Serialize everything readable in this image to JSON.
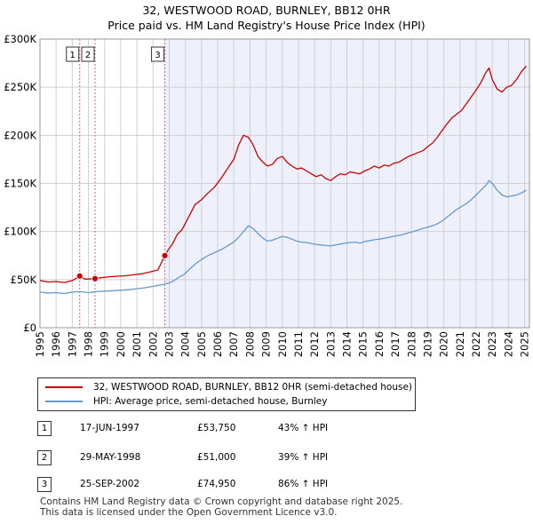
{
  "title": "32, WESTWOOD ROAD, BURNLEY, BB12 0HR",
  "subtitle": "Price paid vs. HM Land Registry's House Price Index (HPI)",
  "colors": {
    "property": "#cc0000",
    "hpi": "#6699cc",
    "shade": "#eef1fb",
    "marker_line": "#cc6688"
  },
  "chart_data": {
    "type": "line",
    "title": "32, WESTWOOD ROAD, BURNLEY, BB12 0HR",
    "subtitle": "Price paid vs. HM Land Registry's House Price Index (HPI)",
    "xlim": [
      1995,
      2025.3
    ],
    "ylim": [
      0,
      300000
    ],
    "y_ticks": [
      0,
      50000,
      100000,
      150000,
      200000,
      250000,
      300000
    ],
    "y_tick_labels": [
      "£0",
      "£50K",
      "£100K",
      "£150K",
      "£200K",
      "£250K",
      "£300K"
    ],
    "x_ticks": [
      1995,
      1996,
      1997,
      1998,
      1999,
      2000,
      2001,
      2002,
      2003,
      2004,
      2005,
      2006,
      2007,
      2008,
      2009,
      2010,
      2011,
      2012,
      2013,
      2014,
      2015,
      2016,
      2017,
      2018,
      2019,
      2020,
      2021,
      2022,
      2023,
      2024,
      2025
    ],
    "x_tick_labels": [
      "1995",
      "1996",
      "1997",
      "1998",
      "1999",
      "2000",
      "2001",
      "2002",
      "2003",
      "2004",
      "2005",
      "2006",
      "2007",
      "2008",
      "2009",
      "2010",
      "2011",
      "2012",
      "2013",
      "2014",
      "2015",
      "2016",
      "2017",
      "2018",
      "2019",
      "2020",
      "2021",
      "2022",
      "2023",
      "2024",
      "2025"
    ],
    "grid": true,
    "series": [
      {
        "name": "32, WESTWOOD ROAD, BURNLEY, BB12 0HR (semi-detached house)",
        "x": [
          1995,
          1995.5,
          1996,
          1996.5,
          1997.0,
          1997.46,
          1997.8,
          1998.41,
          1998.8,
          1999.3,
          1999.8,
          2000.3,
          2000.8,
          2001.3,
          2001.8,
          2002.3,
          2002.73,
          2002.9,
          2003.2,
          2003.5,
          2003.8,
          2004.2,
          2004.6,
          2005.0,
          2005.4,
          2005.8,
          2006.2,
          2006.6,
          2007.0,
          2007.3,
          2007.6,
          2007.9,
          2008.2,
          2008.5,
          2008.8,
          2009.1,
          2009.4,
          2009.7,
          2010.0,
          2010.3,
          2010.6,
          2010.9,
          2011.2,
          2011.5,
          2011.8,
          2012.1,
          2012.4,
          2012.7,
          2013.0,
          2013.3,
          2013.6,
          2013.9,
          2014.2,
          2014.5,
          2014.8,
          2015.1,
          2015.4,
          2015.7,
          2016.0,
          2016.3,
          2016.6,
          2016.9,
          2017.2,
          2017.5,
          2017.8,
          2018.1,
          2018.4,
          2018.7,
          2019.0,
          2019.3,
          2019.6,
          2019.9,
          2020.2,
          2020.5,
          2020.8,
          2021.1,
          2021.4,
          2021.7,
          2022.0,
          2022.3,
          2022.6,
          2022.8,
          2023.0,
          2023.3,
          2023.6,
          2023.9,
          2024.2,
          2024.5,
          2024.8,
          2025.1
        ],
        "values": [
          49000,
          47500,
          48000,
          47000,
          49000,
          53750,
          50500,
          51000,
          52000,
          53000,
          53500,
          54000,
          55000,
          56000,
          58000,
          60000,
          74950,
          80000,
          87000,
          97000,
          102000,
          115000,
          128000,
          133000,
          140000,
          146000,
          155000,
          165000,
          175000,
          190000,
          200000,
          198000,
          190000,
          178000,
          172000,
          168000,
          170000,
          176000,
          178000,
          172000,
          168000,
          165000,
          166000,
          163000,
          160000,
          157000,
          159000,
          155000,
          153000,
          157000,
          160000,
          159000,
          162000,
          161000,
          160000,
          163000,
          165000,
          168000,
          166000,
          169000,
          168000,
          171000,
          172000,
          175000,
          178000,
          180000,
          182000,
          184000,
          188000,
          192000,
          198000,
          205000,
          212000,
          218000,
          222000,
          226000,
          233000,
          240000,
          247000,
          255000,
          265000,
          270000,
          258000,
          248000,
          245000,
          250000,
          252000,
          258000,
          266000,
          272000
        ]
      },
      {
        "name": "HPI: Average price, semi-detached house, Burnley",
        "x": [
          1995,
          1995.5,
          1996,
          1996.5,
          1997.0,
          1997.5,
          1998.0,
          1998.5,
          1999.0,
          1999.5,
          2000.0,
          2000.5,
          2001.0,
          2001.5,
          2002.0,
          2002.5,
          2003.0,
          2003.3,
          2003.6,
          2003.9,
          2004.2,
          2004.6,
          2005.0,
          2005.4,
          2005.8,
          2006.2,
          2006.6,
          2007.0,
          2007.3,
          2007.6,
          2007.9,
          2008.2,
          2008.5,
          2008.8,
          2009.1,
          2009.4,
          2009.7,
          2010.0,
          2010.3,
          2010.6,
          2010.9,
          2011.2,
          2011.5,
          2011.8,
          2012.1,
          2012.4,
          2012.7,
          2013.0,
          2013.3,
          2013.6,
          2013.9,
          2014.2,
          2014.5,
          2014.8,
          2015.1,
          2015.4,
          2015.7,
          2016.0,
          2016.3,
          2016.6,
          2016.9,
          2017.2,
          2017.5,
          2017.8,
          2018.1,
          2018.4,
          2018.7,
          2019.0,
          2019.3,
          2019.6,
          2019.9,
          2020.2,
          2020.5,
          2020.8,
          2021.1,
          2021.4,
          2021.7,
          2022.0,
          2022.3,
          2022.6,
          2022.8,
          2023.0,
          2023.3,
          2023.6,
          2023.9,
          2024.2,
          2024.5,
          2024.8,
          2025.1
        ],
        "values": [
          37000,
          36000,
          36500,
          35500,
          37000,
          37500,
          36500,
          37500,
          38000,
          38500,
          39000,
          39500,
          40500,
          41500,
          43000,
          44500,
          46500,
          49000,
          52500,
          55000,
          60000,
          66000,
          71000,
          75000,
          78000,
          81000,
          85000,
          89000,
          94000,
          100000,
          106000,
          103000,
          98000,
          93000,
          90000,
          91000,
          93000,
          95000,
          94000,
          92000,
          90000,
          89000,
          88500,
          87500,
          86500,
          86000,
          85500,
          85000,
          86000,
          87000,
          88000,
          88500,
          89000,
          88000,
          89500,
          90500,
          91500,
          92000,
          93000,
          94000,
          95000,
          96000,
          97000,
          98500,
          100000,
          101500,
          103000,
          104500,
          106000,
          108000,
          111000,
          115000,
          119000,
          123000,
          126000,
          129000,
          133000,
          138000,
          143000,
          148000,
          153000,
          150000,
          143000,
          138000,
          136000,
          137000,
          138000,
          140000,
          143000
        ]
      }
    ],
    "transactions": [
      {
        "id": "1",
        "x": 1997.46,
        "value": 53750
      },
      {
        "id": "2",
        "x": 1998.41,
        "value": 51000
      },
      {
        "id": "3",
        "x": 2002.73,
        "value": 74950
      }
    ],
    "hpi_shade_from": 2002.73
  },
  "legend": {
    "property": "32, WESTWOOD ROAD, BURNLEY, BB12 0HR (semi-detached house)",
    "hpi": "HPI: Average price, semi-detached house, Burnley"
  },
  "transactions": [
    {
      "id": "1",
      "date": "17-JUN-1997",
      "price": "£53,750",
      "hpi": "43% ↑ HPI"
    },
    {
      "id": "2",
      "date": "29-MAY-1998",
      "price": "£51,000",
      "hpi": "39% ↑ HPI"
    },
    {
      "id": "3",
      "date": "25-SEP-2002",
      "price": "£74,950",
      "hpi": "86% ↑ HPI"
    }
  ],
  "footer": {
    "line1": "Contains HM Land Registry data © Crown copyright and database right 2025.",
    "line2": "This data is licensed under the Open Government Licence v3.0."
  }
}
